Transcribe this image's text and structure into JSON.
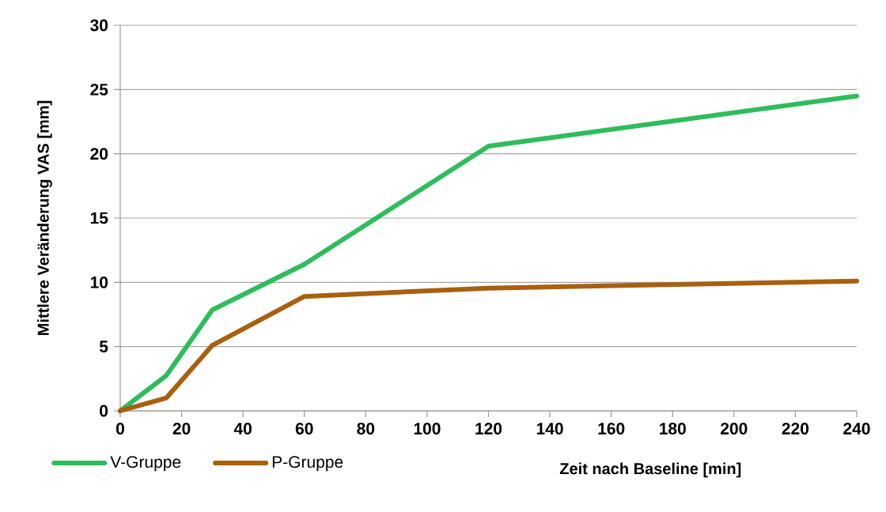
{
  "chart_data": {
    "type": "line",
    "ylabel": "Mittlere Veränderung VAS [mm]",
    "xlabel": "Zeit nach Baseline [min]",
    "x": [
      0,
      15,
      30,
      60,
      120,
      240
    ],
    "series": [
      {
        "name": "V-Gruppe",
        "color": "#2ebd5b",
        "values": [
          0,
          2.75,
          7.85,
          11.4,
          20.6,
          24.5
        ]
      },
      {
        "name": "P-Gruppe",
        "color": "#a8600f",
        "values": [
          0,
          1.0,
          5.1,
          8.9,
          9.55,
          10.1
        ]
      }
    ],
    "xlim": [
      0,
      240
    ],
    "xticks": [
      0,
      20,
      40,
      60,
      80,
      100,
      120,
      140,
      160,
      180,
      200,
      220,
      240
    ],
    "ylim": [
      0,
      30
    ],
    "yticks": [
      0,
      5,
      10,
      15,
      20,
      25,
      30
    ],
    "grid": "y",
    "legend": "bottom left",
    "marker": "none",
    "line_style": "solid"
  }
}
